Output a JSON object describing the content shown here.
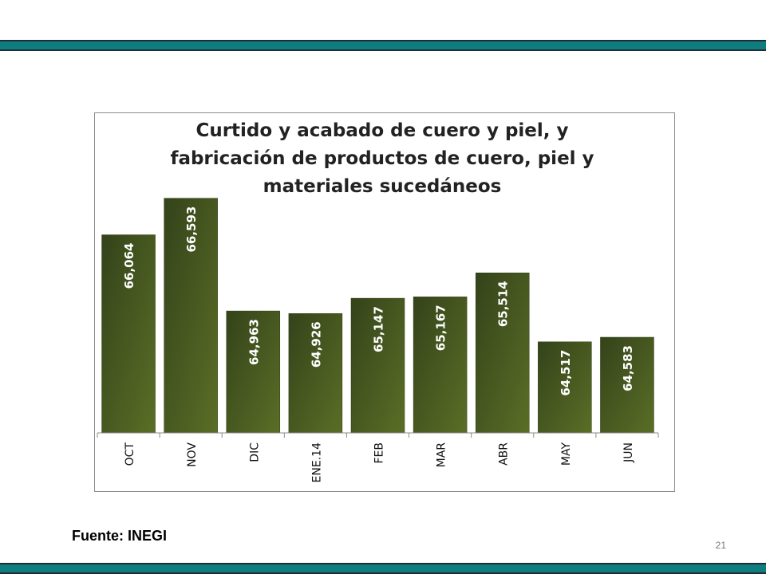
{
  "slide": {
    "source": "Fuente: INEGI",
    "page_number": "21",
    "band_color": "#0f7d7d"
  },
  "chart_data": {
    "type": "bar",
    "title": "Curtido y acabado de cuero y piel, y fabricación de productos de cuero, piel y materiales sucedáneos",
    "categories": [
      "OCT",
      "NOV",
      "DIC",
      "ENE.14",
      "FEB",
      "MAR",
      "ABR",
      "MAY",
      "JUN"
    ],
    "values": [
      66064,
      66593,
      64963,
      64926,
      65147,
      65167,
      65514,
      64517,
      64583
    ],
    "value_labels": [
      "66,064",
      "66,593",
      "64,963",
      "64,926",
      "65,147",
      "65,167",
      "65,514",
      "64,517",
      "64,583"
    ],
    "bar_color": "#4b5e1e",
    "ylim": [
      63200,
      66900
    ],
    "grid": false,
    "legend": "none"
  }
}
